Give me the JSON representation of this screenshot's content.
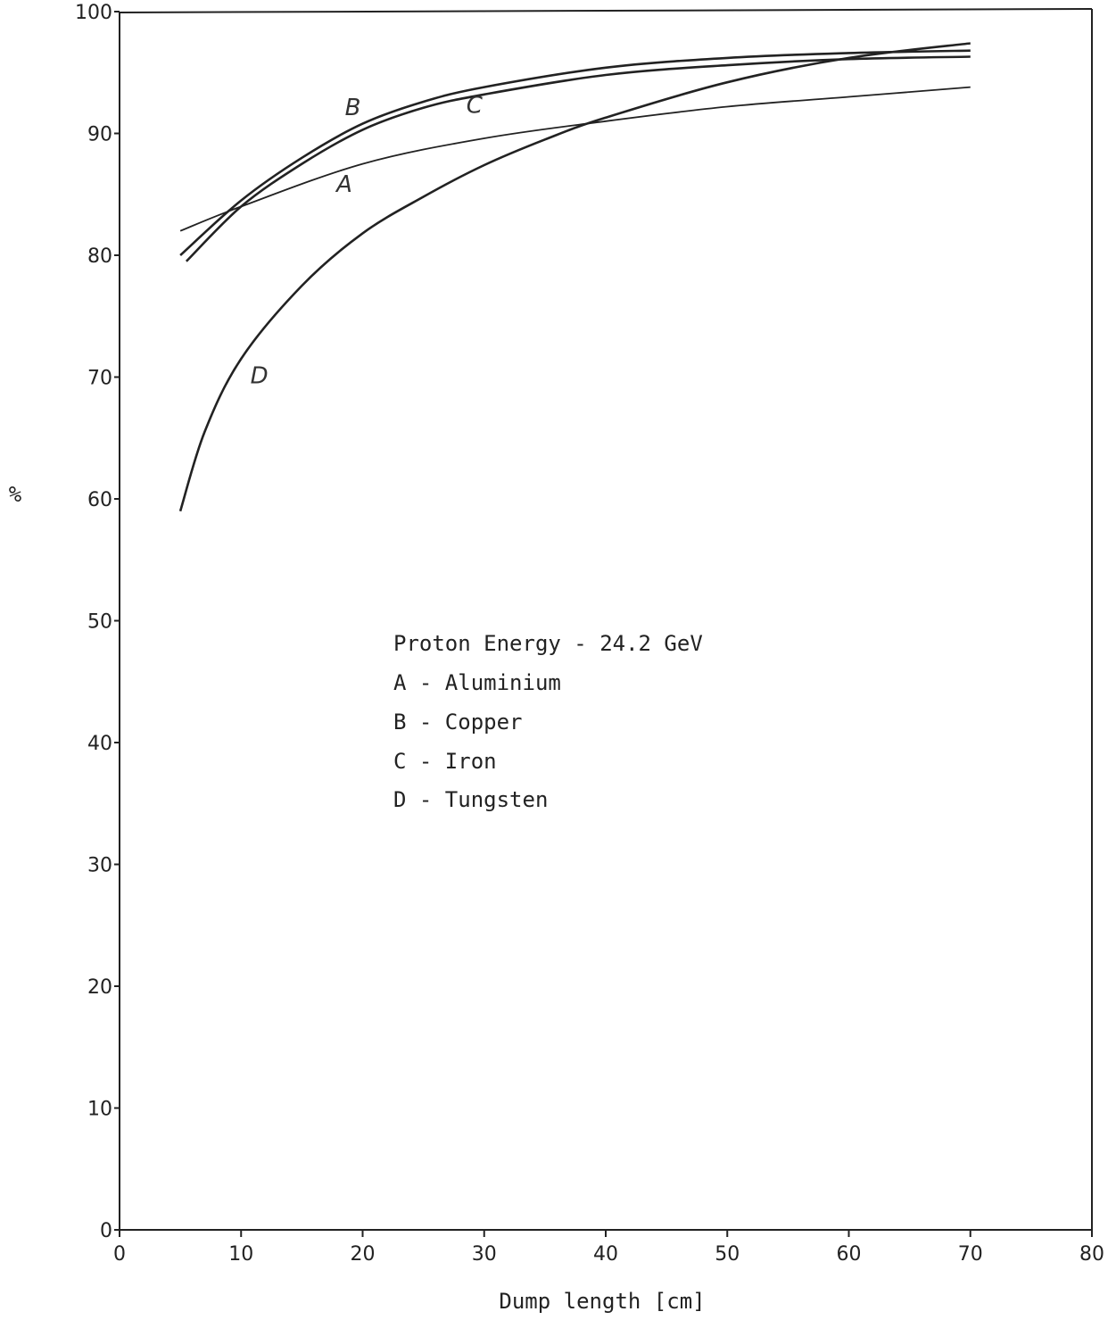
{
  "chart_data": {
    "type": "line",
    "xlabel": "Dump length [cm]",
    "ylabel": "%",
    "xlim": [
      0,
      80
    ],
    "ylim": [
      0,
      100
    ],
    "xticks": [
      0,
      10,
      20,
      30,
      40,
      50,
      60,
      70,
      80
    ],
    "yticks": [
      0,
      10,
      20,
      30,
      40,
      50,
      60,
      70,
      80,
      90,
      100
    ],
    "grid": false,
    "legend_position": "center",
    "legend": [
      "Proton Energy - 24.2 GeV",
      "A - Aluminium",
      "B - Copper",
      "C - Iron",
      "D - Tungsten"
    ],
    "series": [
      {
        "name": "A",
        "x": [
          5,
          10,
          20,
          30,
          40,
          50,
          60,
          70
        ],
        "y": [
          82.0,
          84.0,
          87.5,
          89.6,
          91.0,
          92.2,
          93.0,
          93.8
        ],
        "label_at": [
          18.5,
          85.2
        ]
      },
      {
        "name": "B",
        "x": [
          5,
          10,
          15,
          20,
          25,
          30,
          40,
          50,
          60,
          70
        ],
        "y": [
          80.0,
          84.5,
          88.0,
          90.8,
          92.6,
          93.8,
          95.4,
          96.2,
          96.6,
          96.8
        ],
        "label_at": [
          19.2,
          91.5
        ]
      },
      {
        "name": "C",
        "x": [
          5.5,
          10,
          15,
          20,
          25,
          30,
          40,
          50,
          60,
          70
        ],
        "y": [
          79.5,
          84.0,
          87.5,
          90.3,
          92.1,
          93.2,
          94.8,
          95.6,
          96.1,
          96.3
        ],
        "label_at": [
          29.2,
          91.7
        ]
      },
      {
        "name": "D",
        "x": [
          5,
          7,
          10,
          15,
          20,
          25,
          30,
          35,
          40,
          50,
          60,
          70
        ],
        "y": [
          59.0,
          65.5,
          71.5,
          77.5,
          81.8,
          84.8,
          87.4,
          89.5,
          91.3,
          94.2,
          96.2,
          97.4
        ],
        "label_at": [
          11.5,
          69.5
        ]
      }
    ]
  }
}
